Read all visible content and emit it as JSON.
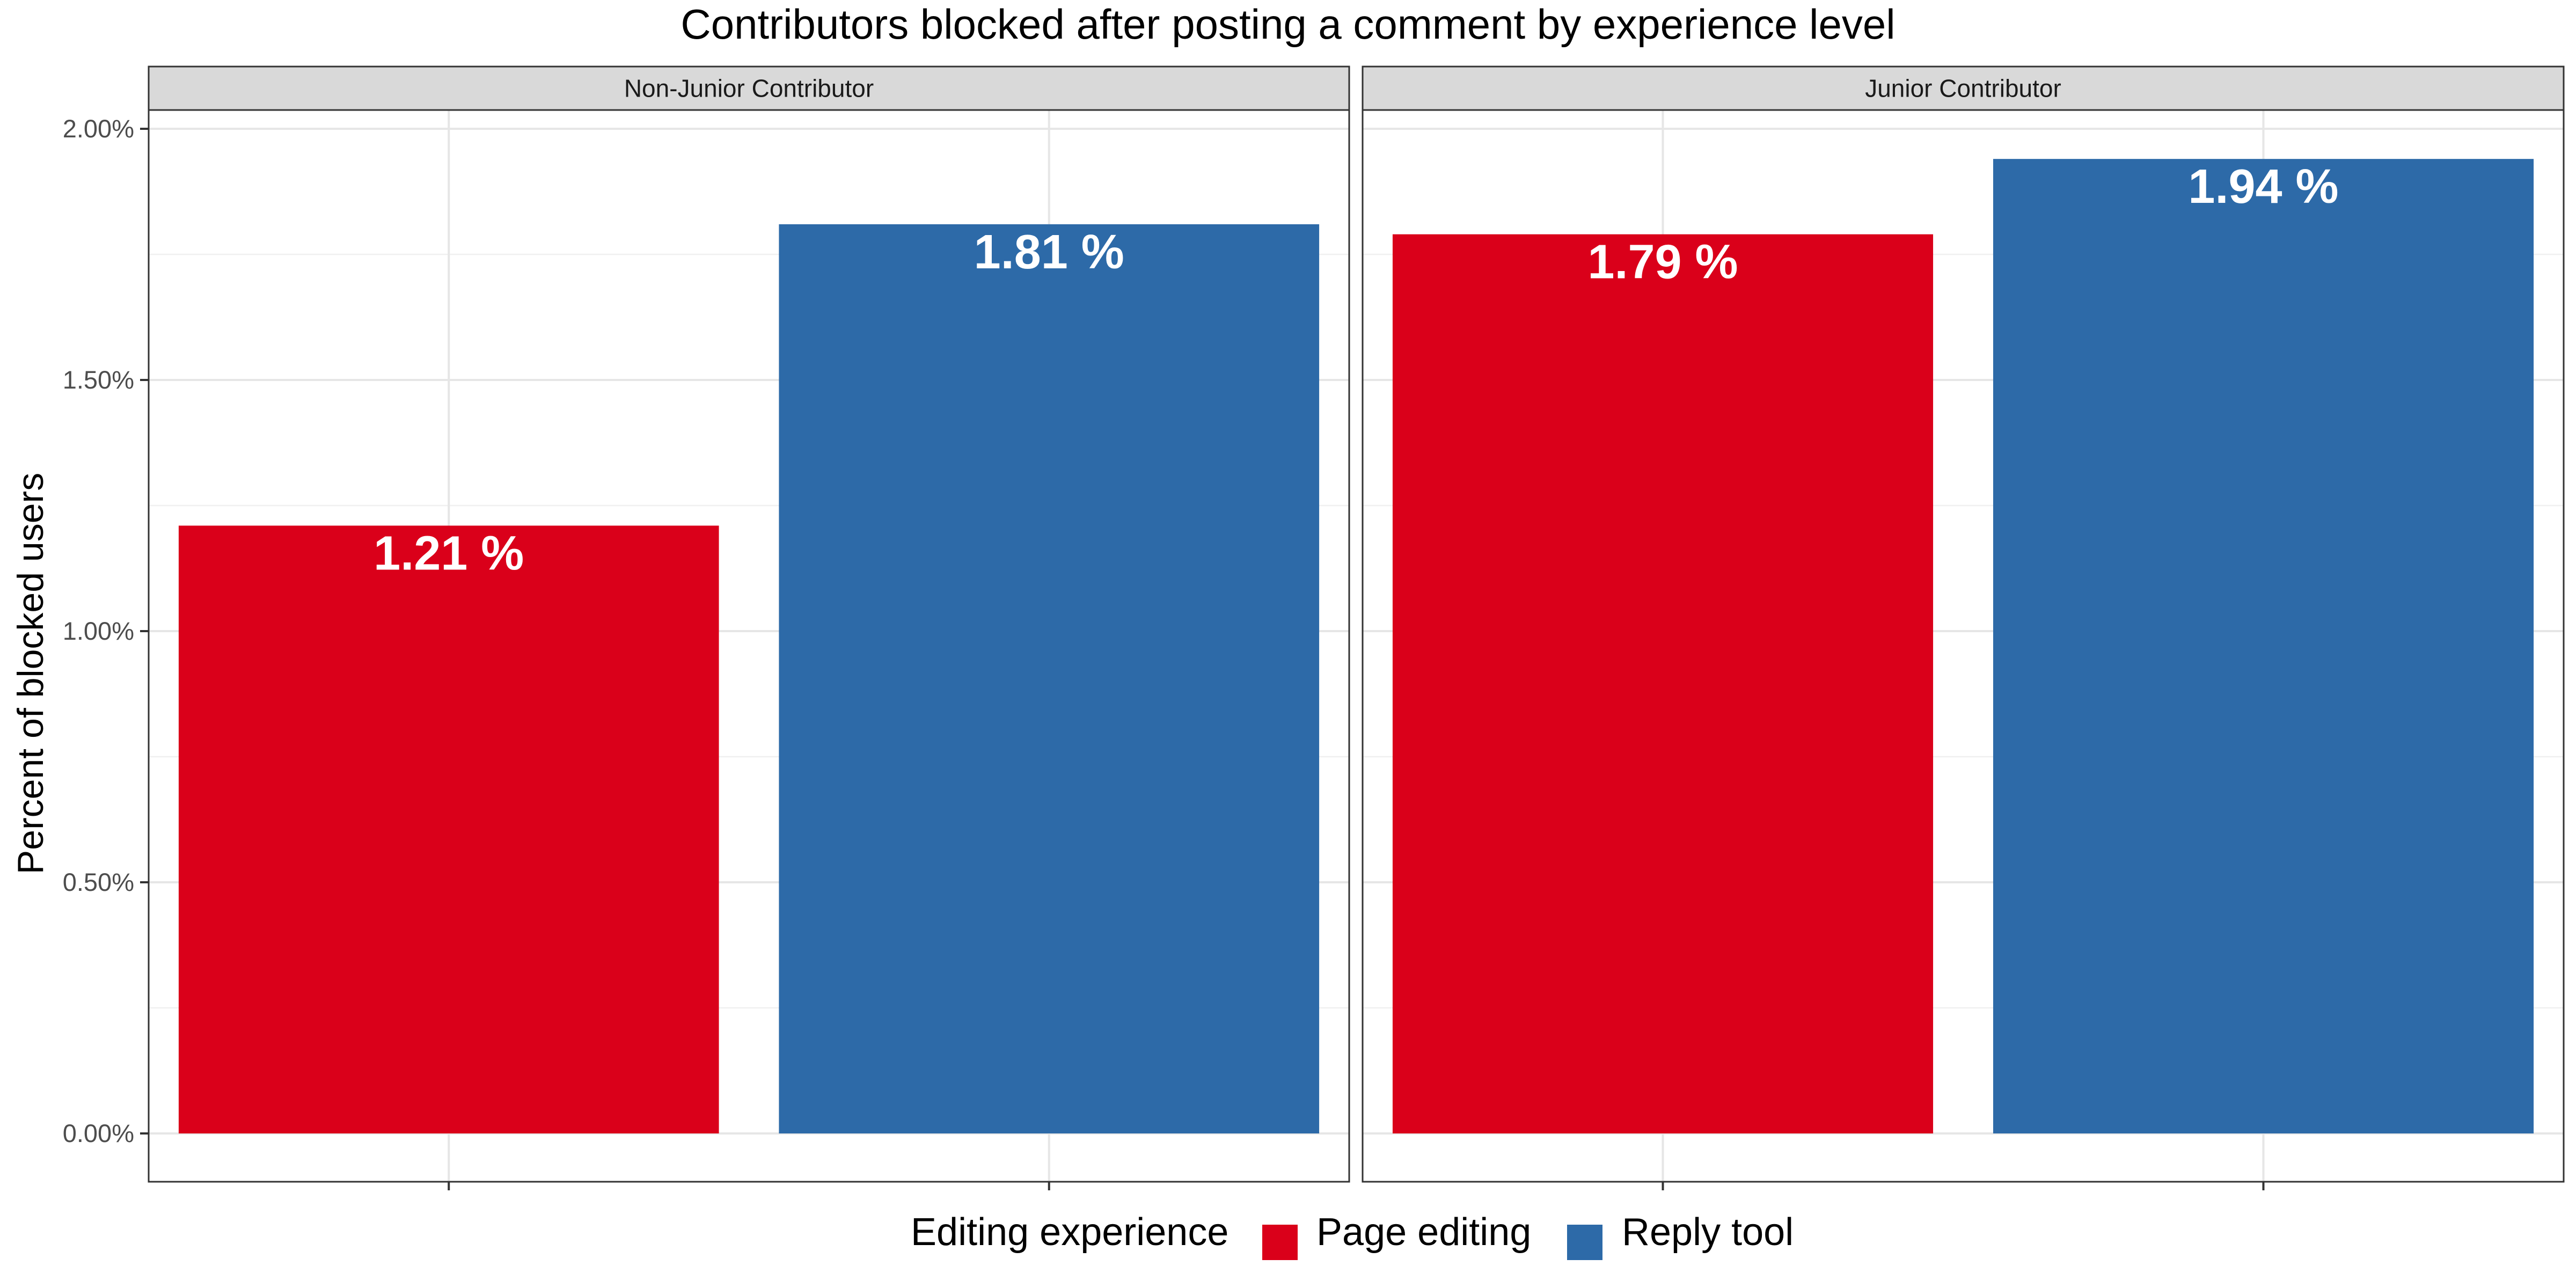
{
  "chart_data": {
    "type": "bar",
    "title": "Contributors blocked after posting a comment by experience level",
    "ylabel": "Percent of blocked users",
    "xlabel": "",
    "ylim": [
      0,
      2.1
    ],
    "y_ticks": [
      "0.00%",
      "0.50%",
      "1.00%",
      "1.50%",
      "2.00%"
    ],
    "y_tick_values": [
      0,
      0.5,
      1.0,
      1.5,
      2.0
    ],
    "grid": true,
    "legend_position": "bottom",
    "legend_title": "Editing experience",
    "series": [
      {
        "name": "Page editing",
        "color": "#DA001A"
      },
      {
        "name": "Reply tool",
        "color": "#2D6AA8"
      }
    ],
    "panels": [
      {
        "label": "Non-Junior Contributor",
        "values": [
          1.21,
          1.81
        ],
        "value_labels": [
          "1.21 %",
          "1.81 %"
        ]
      },
      {
        "label": "Junior Contributor",
        "values": [
          1.79,
          1.94
        ],
        "value_labels": [
          "1.79 %",
          "1.94 %"
        ]
      }
    ]
  }
}
